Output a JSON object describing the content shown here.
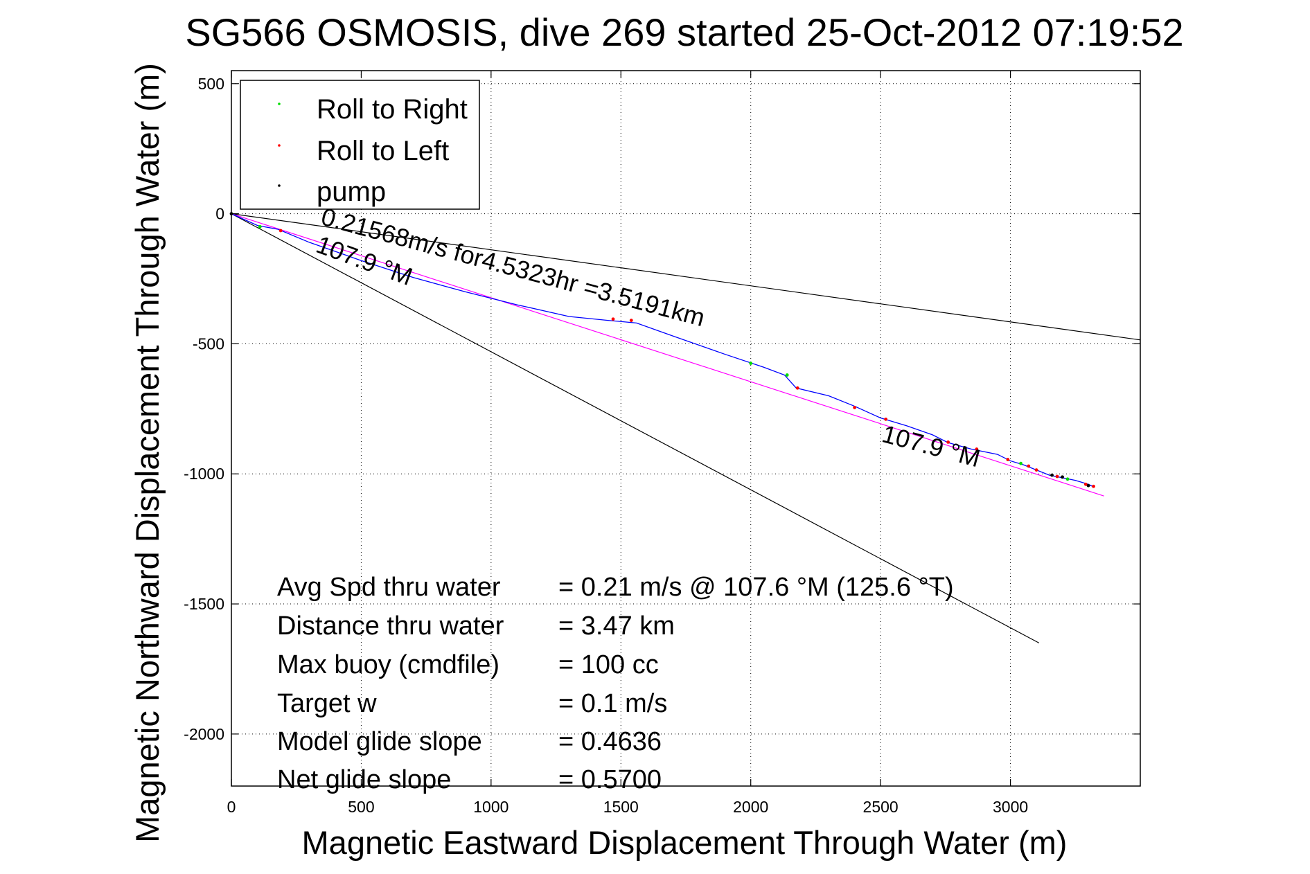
{
  "chart_data": {
    "type": "line",
    "title": "SG566 OSMOSIS, dive 269 started 25-Oct-2012 07:19:52",
    "xlabel": "Magnetic Eastward Displacement Through Water (m)",
    "ylabel": "Magnetic Northward Displacement Through Water (m)",
    "xlim": [
      0,
      3500
    ],
    "ylim": [
      -2200,
      550
    ],
    "xticks": [
      0,
      500,
      1000,
      1500,
      2000,
      2500,
      3000
    ],
    "yticks": [
      500,
      0,
      -500,
      -1000,
      -1500,
      -2000
    ],
    "grid": "dotted",
    "legend": {
      "placement": "top-left",
      "entries": [
        {
          "label": "Roll to Right",
          "color": "#00dd00"
        },
        {
          "label": "Roll to Left",
          "color": "#ff0000"
        },
        {
          "label": "pump",
          "color": "#000000"
        }
      ]
    },
    "series": [
      {
        "color": "#0000ff",
        "x": [
          0,
          100,
          180,
          300,
          500,
          700,
          900,
          1100,
          1300,
          1450,
          1560,
          1700,
          1900,
          2050,
          2130,
          2175,
          2300,
          2400,
          2500,
          2600,
          2700,
          2760,
          2850,
          2950,
          3000,
          3050,
          3100,
          3150,
          3200,
          3250,
          3300,
          3320
        ],
        "y": [
          0,
          -45,
          -60,
          -110,
          -180,
          -245,
          -300,
          -350,
          -395,
          -410,
          -420,
          -470,
          -540,
          -590,
          -620,
          -670,
          -700,
          -740,
          -785,
          -815,
          -850,
          -880,
          -905,
          -925,
          -950,
          -965,
          -985,
          -1005,
          -1015,
          -1025,
          -1040,
          -1050
        ]
      }
    ],
    "reference_lines": [
      {
        "color": "#000000",
        "x": [
          0,
          3500
        ],
        "y": [
          0,
          -485
        ]
      },
      {
        "color": "#000000",
        "x": [
          0,
          3110
        ],
        "y": [
          0,
          -1650
        ]
      },
      {
        "color": "#ff00ff",
        "x": [
          0,
          3360
        ],
        "y": [
          0,
          -1085
        ]
      }
    ],
    "markers": [
      {
        "color": "#00dd00",
        "x": [
          110,
          2000,
          2140,
          3040,
          3220
        ],
        "y": [
          -50,
          -575,
          -620,
          -960,
          -1020
        ]
      },
      {
        "color": "#ff0000",
        "x": [
          190,
          1470,
          1540,
          2180,
          2400,
          2520,
          2760,
          2870,
          2990,
          3070,
          3100,
          3180,
          3290,
          3320
        ],
        "y": [
          -65,
          -405,
          -410,
          -670,
          -745,
          -790,
          -878,
          -905,
          -945,
          -970,
          -985,
          -1010,
          -1040,
          -1048
        ]
      },
      {
        "color": "#000000",
        "x": [
          0,
          3160,
          3200,
          3300
        ],
        "y": [
          0,
          -1005,
          -1012,
          -1045
        ]
      }
    ],
    "annotations": [
      {
        "text": "0.21568m/s for4.5323hr =3.5191km",
        "x": 340,
        "y": -40,
        "angle": 15
      },
      {
        "text": "107.9 °M",
        "x": 320,
        "y": -145,
        "angle": 20
      },
      {
        "text": "107.9 °M",
        "x": 2500,
        "y": -875,
        "angle": 15
      }
    ],
    "stats": [
      {
        "label": "Avg Spd thru water",
        "value": "=  0.21 m/s @ 107.6 °M (125.6 °T)"
      },
      {
        "label": "Distance thru water",
        "value": "=  3.47 km"
      },
      {
        "label": "Max buoy (cmdfile)",
        "value": "= 100 cc"
      },
      {
        "label": "Target w",
        "value": "= 0.1 m/s"
      },
      {
        "label": "Model glide slope",
        "value": "= 0.4636"
      },
      {
        "label": "Net glide slope",
        "value": "= 0.5700"
      }
    ]
  }
}
